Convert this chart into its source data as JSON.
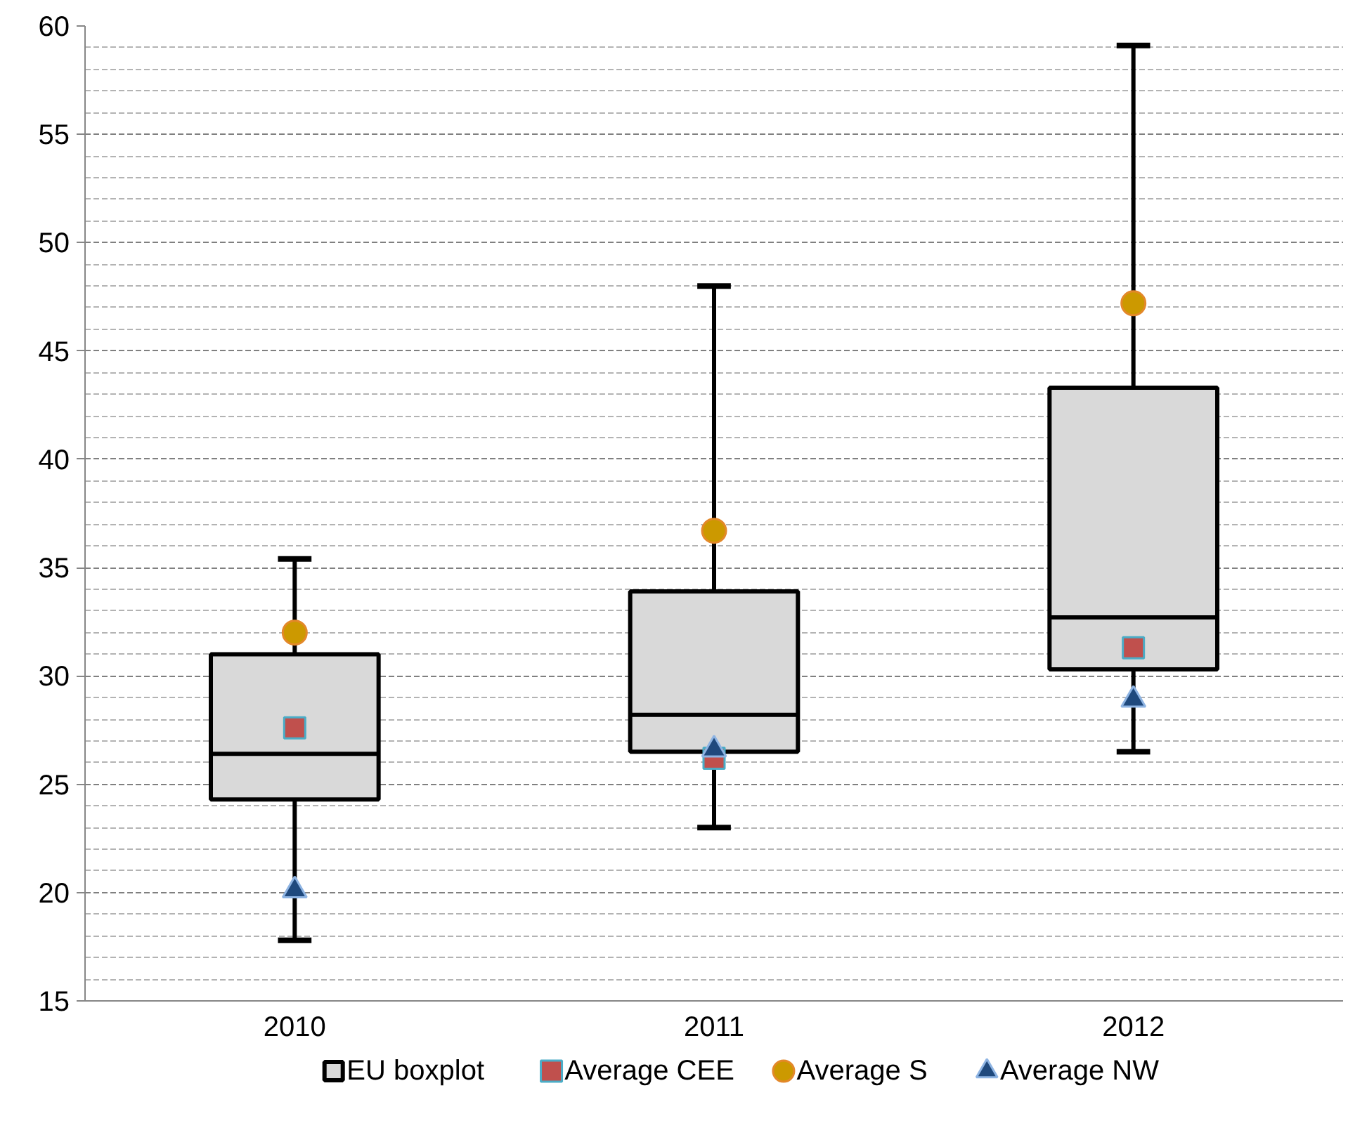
{
  "chart_data": {
    "type": "box",
    "categories": [
      "2010",
      "2011",
      "2012"
    ],
    "ylim": [
      15,
      60
    ],
    "yticks": [
      15,
      20,
      25,
      30,
      35,
      40,
      45,
      50,
      55,
      60
    ],
    "grid": "y",
    "legend": "bottom",
    "series": [
      {
        "name": "EU boxplot",
        "color": "#d9d9d9",
        "boxes": [
          {
            "low": 17.8,
            "q1": 24.3,
            "median": 26.4,
            "q3": 31.0,
            "high": 35.4
          },
          {
            "low": 23.0,
            "q1": 26.5,
            "median": 28.2,
            "q3": 33.9,
            "high": 48.0
          },
          {
            "low": 26.5,
            "q1": 30.3,
            "median": 32.7,
            "q3": 43.3,
            "high": 59.1
          }
        ]
      },
      {
        "type": "scatter",
        "name": "Average CEE",
        "color": "#c0504d",
        "marker": "square",
        "values": [
          27.6,
          26.2,
          31.3
        ]
      },
      {
        "type": "scatter",
        "name": "Average S",
        "color": "#cc9900",
        "marker": "circle",
        "values": [
          32.0,
          36.7,
          47.2
        ]
      },
      {
        "type": "scatter",
        "name": "Average NW",
        "color": "#1f497d",
        "marker": "triangle",
        "values": [
          20.1,
          26.6,
          28.9
        ]
      }
    ]
  }
}
